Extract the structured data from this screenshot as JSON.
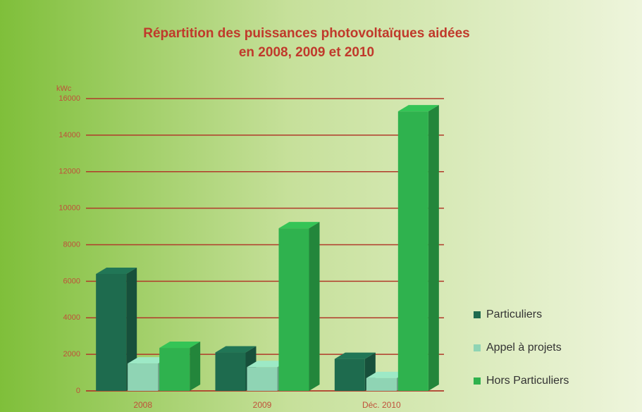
{
  "chart_data": {
    "type": "bar3d",
    "title": "Répartition des puissances photovoltaïques aidées",
    "subtitle": "en 2008, 2009 et 2010",
    "y_label": "kWc",
    "categories": [
      "2008",
      "2009",
      "Déc. 2010"
    ],
    "series": [
      {
        "name": "Particuliers",
        "color": "#1e6b4e",
        "values": [
          6400,
          2100,
          1750
        ]
      },
      {
        "name": "Appel à projets",
        "color": "#8fd4b4",
        "values": [
          1500,
          1300,
          700
        ]
      },
      {
        "name": "Hors Particuliers",
        "color": "#2fb24e",
        "values": [
          2350,
          8900,
          15300
        ]
      }
    ],
    "ylim": [
      0,
      16000
    ],
    "yticks": [
      0,
      2000,
      4000,
      6000,
      8000,
      10000,
      12000,
      14000,
      16000
    ],
    "grid": true,
    "legend": "right"
  }
}
